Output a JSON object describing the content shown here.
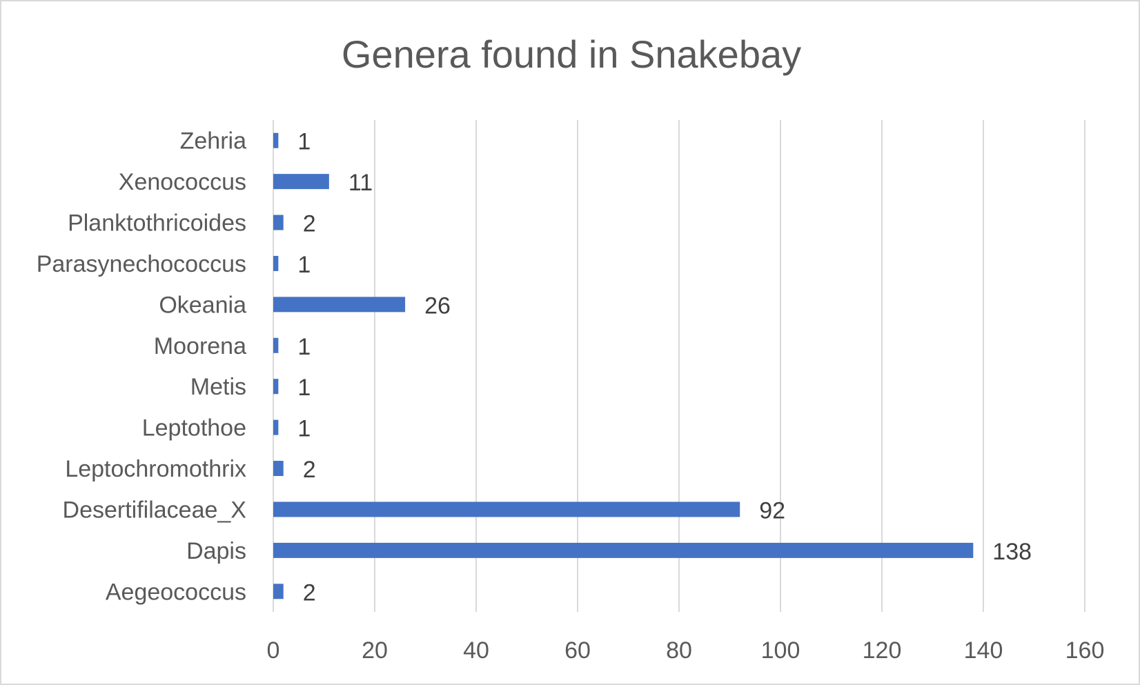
{
  "chart_data": {
    "type": "bar",
    "orientation": "horizontal",
    "title": "Genera found in Snakebay",
    "xlabel": "",
    "ylabel": "",
    "categories": [
      "Aegeococcus",
      "Dapis",
      "Desertifilaceae_X",
      "Leptochromothrix",
      "Leptothoe",
      "Metis",
      "Moorena",
      "Okeania",
      "Parasynechococcus",
      "Planktothricoides",
      "Xenococcus",
      "Zehria"
    ],
    "values": [
      2,
      138,
      92,
      2,
      1,
      1,
      1,
      26,
      1,
      2,
      11,
      1
    ],
    "xlim": [
      0,
      160
    ],
    "xticks": [
      0,
      20,
      40,
      60,
      80,
      100,
      120,
      140,
      160
    ],
    "grid": true,
    "legend": "none",
    "bar_color": "#4472C4",
    "data_labels": true
  }
}
